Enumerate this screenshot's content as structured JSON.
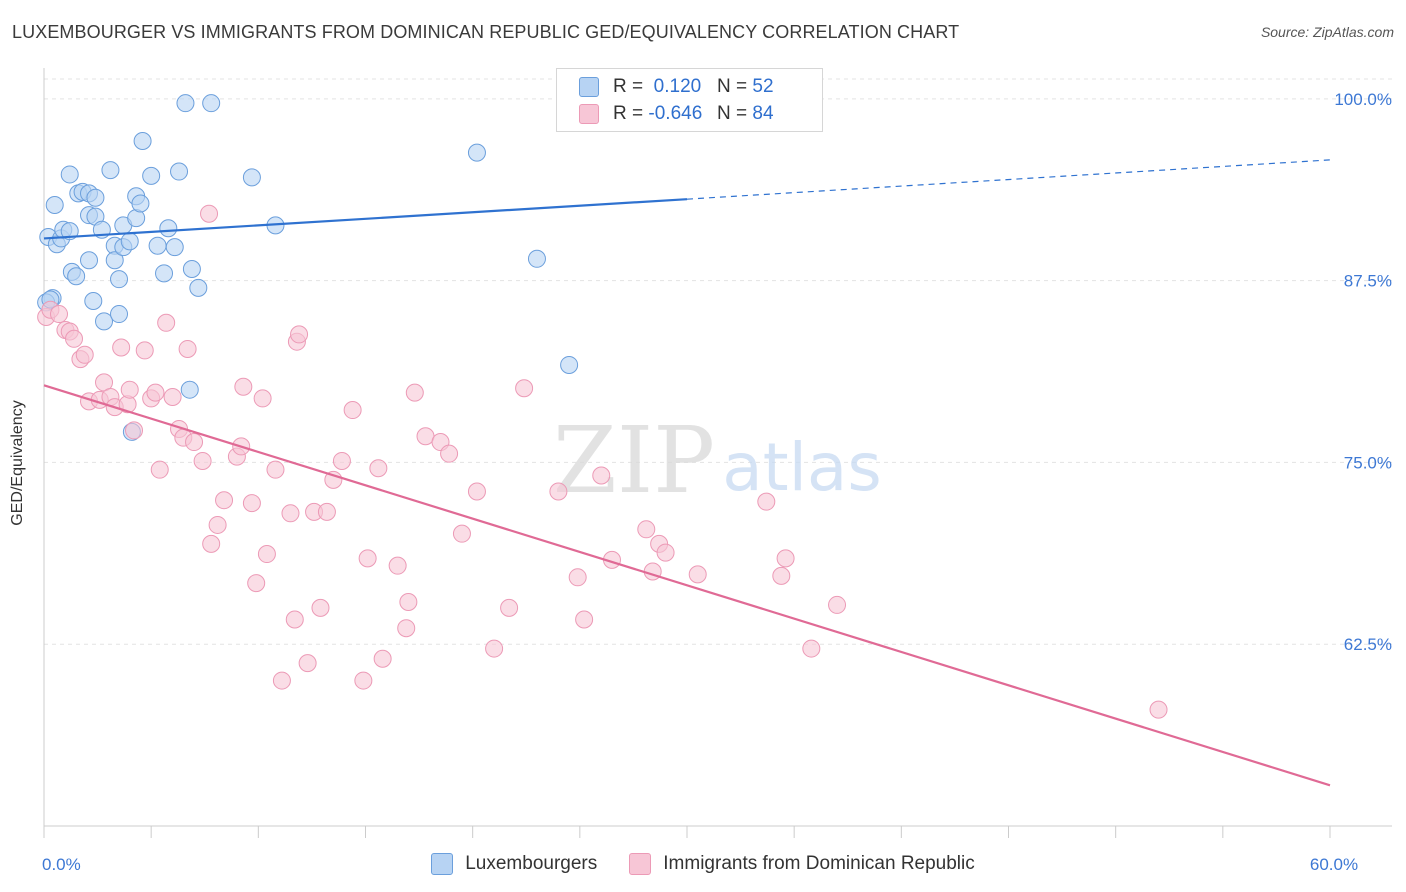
{
  "title": "LUXEMBOURGER VS IMMIGRANTS FROM DOMINICAN REPUBLIC GED/EQUIVALENCY CORRELATION CHART",
  "source": "Source: ZipAtlas.com",
  "watermark": {
    "zip": "ZIP",
    "atlas": "atlas"
  },
  "colors": {
    "blue_fill": "#b7d3f3",
    "blue_stroke": "#6b9fdc",
    "blue_line": "#2f72d0",
    "pink_fill": "#f7c6d6",
    "pink_stroke": "#ec9ab6",
    "pink_line": "#e06a95",
    "tick_label": "#3d78d4",
    "grid": "#e3e3e3"
  },
  "legend": {
    "rows": [
      {
        "r_label": "R =",
        "r_value": "0.120",
        "n_label": "N =",
        "n_value": "52"
      },
      {
        "r_label": "R =",
        "r_value": "-0.646",
        "n_label": "N =",
        "n_value": "84"
      }
    ]
  },
  "chart_data": {
    "type": "scatter",
    "xlabel": "",
    "ylabel": "GED/Equivalency",
    "xlim": [
      0,
      60
    ],
    "ylim": [
      50,
      101.5
    ],
    "x_tick_labels": [
      {
        "value": 0,
        "label": "0.0%"
      },
      {
        "value": 60,
        "label": "60.0%"
      }
    ],
    "y_tick_labels": [
      {
        "value": 100,
        "label": "100.0%"
      },
      {
        "value": 87.5,
        "label": "87.5%"
      },
      {
        "value": 75,
        "label": "75.0%"
      },
      {
        "value": 62.5,
        "label": "62.5%"
      }
    ],
    "grid": true,
    "legend_position": "top-center",
    "series": [
      {
        "name": "Luxembourgers",
        "color": "blue",
        "r": 0.12,
        "n": 52,
        "trend": {
          "x": [
            0,
            30
          ],
          "y": [
            90.4,
            93.1
          ],
          "dashed_to": {
            "x": 60,
            "y": 95.8
          }
        },
        "points": [
          [
            0.2,
            90.5
          ],
          [
            0.6,
            90.0
          ],
          [
            0.8,
            90.4
          ],
          [
            0.9,
            91.0
          ],
          [
            1.2,
            90.9
          ],
          [
            1.3,
            88.1
          ],
          [
            1.5,
            87.8
          ],
          [
            0.4,
            86.3
          ],
          [
            0.5,
            92.7
          ],
          [
            1.2,
            94.8
          ],
          [
            1.6,
            93.5
          ],
          [
            1.8,
            93.6
          ],
          [
            2.1,
            93.5
          ],
          [
            2.4,
            93.2
          ],
          [
            2.1,
            92.0
          ],
          [
            2.4,
            91.9
          ],
          [
            2.7,
            91.0
          ],
          [
            2.1,
            88.9
          ],
          [
            2.3,
            86.1
          ],
          [
            2.8,
            84.7
          ],
          [
            3.1,
            95.1
          ],
          [
            3.3,
            89.9
          ],
          [
            3.3,
            88.9
          ],
          [
            3.5,
            87.6
          ],
          [
            3.5,
            85.2
          ],
          [
            3.7,
            89.8
          ],
          [
            3.7,
            91.3
          ],
          [
            4.0,
            90.2
          ],
          [
            4.3,
            93.3
          ],
          [
            4.3,
            91.8
          ],
          [
            4.5,
            92.8
          ],
          [
            4.6,
            97.1
          ],
          [
            5.0,
            94.7
          ],
          [
            5.3,
            89.9
          ],
          [
            5.6,
            88.0
          ],
          [
            5.8,
            91.1
          ],
          [
            6.1,
            89.8
          ],
          [
            6.3,
            95.0
          ],
          [
            6.6,
            99.7
          ],
          [
            6.9,
            88.3
          ],
          [
            7.2,
            87.0
          ],
          [
            7.8,
            99.7
          ],
          [
            9.7,
            94.6
          ],
          [
            10.8,
            91.3
          ],
          [
            20.2,
            96.3
          ],
          [
            23.0,
            89.0
          ],
          [
            24.5,
            81.7
          ],
          [
            6.8,
            80.0
          ],
          [
            4.1,
            77.1
          ],
          [
            0.1,
            86.0
          ],
          [
            0.3,
            86.2
          ],
          [
            27.0,
            99.9
          ]
        ]
      },
      {
        "name": "Immigrants from Dominican Republic",
        "color": "pink",
        "r": -0.646,
        "n": 84,
        "trend": {
          "x": [
            0,
            60
          ],
          "y": [
            80.3,
            52.8
          ]
        },
        "points": [
          [
            0.1,
            85.0
          ],
          [
            0.3,
            85.5
          ],
          [
            0.7,
            85.2
          ],
          [
            1.0,
            84.1
          ],
          [
            1.2,
            84.0
          ],
          [
            1.4,
            83.5
          ],
          [
            1.7,
            82.1
          ],
          [
            1.9,
            82.4
          ],
          [
            2.1,
            79.2
          ],
          [
            2.6,
            79.3
          ],
          [
            2.8,
            80.5
          ],
          [
            3.1,
            79.5
          ],
          [
            3.3,
            78.8
          ],
          [
            3.6,
            82.9
          ],
          [
            3.9,
            79.0
          ],
          [
            4.0,
            80.0
          ],
          [
            4.2,
            77.2
          ],
          [
            4.7,
            82.7
          ],
          [
            5.0,
            79.4
          ],
          [
            5.2,
            79.8
          ],
          [
            5.4,
            74.5
          ],
          [
            5.7,
            84.6
          ],
          [
            6.0,
            79.5
          ],
          [
            6.3,
            77.3
          ],
          [
            6.5,
            76.7
          ],
          [
            6.7,
            82.8
          ],
          [
            7.0,
            76.4
          ],
          [
            7.4,
            75.1
          ],
          [
            7.7,
            92.1
          ],
          [
            7.8,
            69.4
          ],
          [
            8.1,
            70.7
          ],
          [
            8.4,
            72.4
          ],
          [
            9.0,
            75.4
          ],
          [
            9.2,
            76.1
          ],
          [
            9.3,
            80.2
          ],
          [
            9.7,
            72.2
          ],
          [
            9.9,
            66.7
          ],
          [
            10.2,
            79.4
          ],
          [
            10.4,
            68.7
          ],
          [
            10.8,
            74.5
          ],
          [
            11.1,
            60.0
          ],
          [
            11.5,
            71.5
          ],
          [
            11.7,
            64.2
          ],
          [
            11.8,
            83.3
          ],
          [
            11.9,
            83.8
          ],
          [
            12.3,
            61.2
          ],
          [
            12.6,
            71.6
          ],
          [
            12.9,
            65.0
          ],
          [
            13.2,
            71.6
          ],
          [
            13.5,
            73.8
          ],
          [
            13.9,
            75.1
          ],
          [
            14.4,
            78.6
          ],
          [
            14.9,
            60.0
          ],
          [
            15.1,
            68.4
          ],
          [
            15.6,
            74.6
          ],
          [
            15.8,
            61.5
          ],
          [
            16.5,
            67.9
          ],
          [
            16.9,
            63.6
          ],
          [
            17.0,
            65.4
          ],
          [
            17.3,
            79.8
          ],
          [
            17.8,
            76.8
          ],
          [
            18.5,
            76.4
          ],
          [
            18.9,
            75.6
          ],
          [
            19.5,
            70.1
          ],
          [
            20.2,
            73.0
          ],
          [
            21.0,
            62.2
          ],
          [
            21.7,
            65.0
          ],
          [
            22.4,
            80.1
          ],
          [
            24.0,
            73.0
          ],
          [
            24.9,
            67.1
          ],
          [
            25.2,
            64.2
          ],
          [
            26.0,
            74.1
          ],
          [
            26.5,
            68.3
          ],
          [
            28.1,
            70.4
          ],
          [
            28.4,
            67.5
          ],
          [
            28.7,
            69.4
          ],
          [
            29.0,
            68.8
          ],
          [
            30.5,
            67.3
          ],
          [
            33.7,
            72.3
          ],
          [
            34.4,
            67.2
          ],
          [
            34.6,
            68.4
          ],
          [
            35.8,
            62.2
          ],
          [
            37.0,
            65.2
          ],
          [
            52.0,
            58.0
          ]
        ]
      }
    ]
  }
}
